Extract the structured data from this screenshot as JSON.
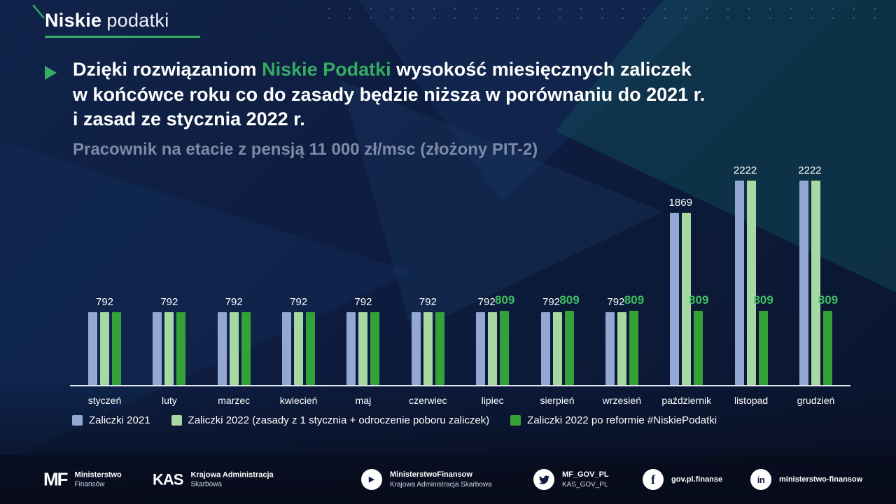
{
  "brand": {
    "name_bold": "Niskie",
    "name_light": "podatki"
  },
  "heading": {
    "line1_pre": "Dzięki rozwiązaniom ",
    "highlight": "Niskie Podatki",
    "line1_post": " wysokość miesięcznych zaliczek",
    "line2": "w końcówce roku co do zasady będzie niższa w porównaniu do 2021 r.",
    "line3": "i zasad ze stycznia 2022 r."
  },
  "chart_data": {
    "type": "bar",
    "title": "Pracownik na etacie z pensją 11 000 zł/msc (złożony PIT-2)",
    "categories": [
      "styczeń",
      "luty",
      "marzec",
      "kwiecień",
      "maj",
      "czerwiec",
      "lipiec",
      "sierpień",
      "wrzesień",
      "październik",
      "listopad",
      "grudzień"
    ],
    "series": [
      {
        "name": "Zaliczki 2021",
        "color": "#92a7d2",
        "values": [
          792,
          792,
          792,
          792,
          792,
          792,
          792,
          792,
          792,
          1869,
          2222,
          2222
        ]
      },
      {
        "name": "Zaliczki 2022 (zasady z 1 stycznia + odroczenie poboru zaliczek)",
        "color": "#a8d8a2",
        "values": [
          792,
          792,
          792,
          792,
          792,
          792,
          792,
          792,
          792,
          1869,
          2222,
          2222
        ]
      },
      {
        "name": "Zaliczki 2022 po reformie #NiskiePodatki",
        "color": "#35a139",
        "values": [
          792,
          792,
          792,
          792,
          792,
          792,
          809,
          809,
          809,
          809,
          809,
          809
        ]
      }
    ],
    "ylim": [
      0,
      2400
    ],
    "grid": false,
    "legend_position": "bottom",
    "value_label_colors": {
      "default": "#ffffff",
      "reform": "#3fbf63"
    },
    "accent_green": "#35ab63"
  },
  "footer": {
    "mf_logo": "MF",
    "mf_line1": "Ministerstwo",
    "mf_line2": "Finansów",
    "kas_logo": "KAS",
    "kas_line1": "Krajowa Administracja",
    "kas_line2": "Skarbowa",
    "youtube_line1": "MinisterstwoFinansow",
    "youtube_line2": "Krajowa Administracja Skarbowa",
    "twitter_line1": "MF_GOV_PL",
    "twitter_line2": "KAS_GOV_PL",
    "facebook_handle": "gov.pl.finanse",
    "linkedin_handle": "ministerstwo-finansow"
  }
}
